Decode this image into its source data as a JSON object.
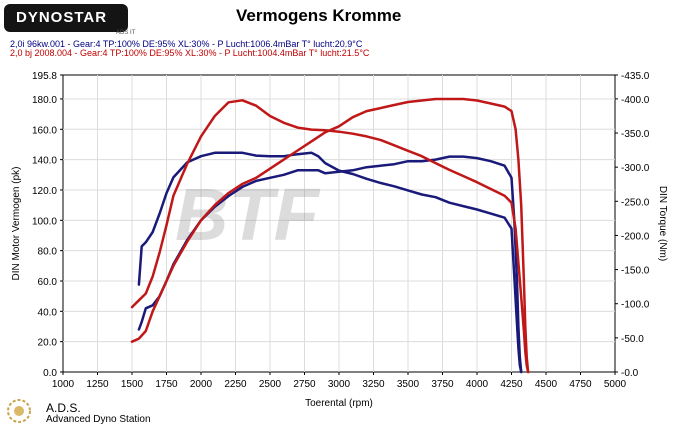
{
  "header": {
    "logo_text": "DYNOSTAR",
    "logo_subtext": "ADS IT",
    "title": "Vermogens Kromme",
    "run1_info": "2,0i 96kw.001 - Gear:4 TP:100% DE:95% XL:30%   - P Lucht:1006.4mBar T° lucht:20.9°C",
    "run2_info": "2,0 bj 2008.004 - Gear:4 TP:100% DE:95% XL:30%    - P Lucht:1004.4mBar T° lucht:21.5°C"
  },
  "footer": {
    "ads_name": "A.D.S.",
    "ads_full": "Advanced Dyno Station"
  },
  "watermark": "BTF",
  "colors": {
    "run1": "#1a1a7a",
    "run2": "#c01818",
    "header_run1": "#000080",
    "header_run2": "#c00000"
  },
  "chart_data": {
    "type": "line",
    "title": "Vermogens Kromme",
    "xlabel": "Toerental (rpm)",
    "ylabel_left": "DIN Motor Vermogen (pk)",
    "ylabel_right": "DIN Torque (Nm)",
    "xlim": [
      1000,
      5000
    ],
    "ylim_left": [
      0,
      195.8
    ],
    "ylim_right": [
      0,
      435
    ],
    "x_ticks": [
      "1000",
      "1250",
      "1500",
      "1750",
      "2000",
      "2250",
      "2500",
      "2750",
      "3000",
      "3250",
      "3500",
      "3750",
      "4000",
      "4250",
      "4500",
      "4750",
      "5000"
    ],
    "y_left_ticks": [
      "0.0",
      "20.0",
      "40.0",
      "60.0",
      "80.0",
      "100.0",
      "120.0",
      "140.0",
      "160.0",
      "180.0",
      "195.8"
    ],
    "y_right_ticks": [
      "-0.0",
      "-50.0",
      "-100.0",
      "-150.0",
      "-200.0",
      "-250.0",
      "-300.0",
      "-350.0",
      "-400.0",
      "-435.0"
    ],
    "grid": true,
    "series": [
      {
        "run": "run1",
        "quantity": "power",
        "axis": "left",
        "x": [
          1550,
          1570,
          1600,
          1650,
          1700,
          1750,
          1800,
          1900,
          2000,
          2100,
          2200,
          2300,
          2400,
          2500,
          2600,
          2700,
          2800,
          2850,
          2900,
          3000,
          3100,
          3200,
          3300,
          3400,
          3500,
          3600,
          3700,
          3750,
          3800,
          3900,
          4000,
          4100,
          4200,
          4250,
          4270,
          4290,
          4300,
          4310,
          4320
        ],
        "y": [
          28,
          33,
          42,
          44,
          50,
          60,
          71,
          87,
          100,
          109,
          116,
          122,
          126,
          128,
          130,
          133,
          133,
          133,
          131,
          132,
          133,
          135,
          136,
          137,
          139,
          139,
          140,
          141,
          142,
          142,
          141,
          139,
          136,
          128,
          100,
          60,
          30,
          10,
          0
        ]
      },
      {
        "run": "run1",
        "quantity": "torque",
        "axis": "right",
        "x": [
          1550,
          1570,
          1600,
          1650,
          1700,
          1750,
          1800,
          1900,
          2000,
          2100,
          2200,
          2300,
          2400,
          2500,
          2600,
          2700,
          2800,
          2850,
          2900,
          3000,
          3100,
          3200,
          3300,
          3400,
          3500,
          3600,
          3700,
          3750,
          3800,
          3900,
          4000,
          4100,
          4200,
          4250,
          4270,
          4290,
          4300,
          4310,
          4320
        ],
        "y": [
          128,
          184,
          190,
          205,
          232,
          262,
          285,
          307,
          316,
          321,
          321,
          321,
          317,
          316,
          316,
          319,
          321,
          316,
          306,
          295,
          290,
          283,
          277,
          272,
          266,
          260,
          256,
          252,
          248,
          243,
          238,
          232,
          226,
          210,
          140,
          70,
          35,
          10,
          0
        ]
      },
      {
        "run": "run2",
        "quantity": "power",
        "axis": "left",
        "x": [
          1500,
          1550,
          1600,
          1650,
          1700,
          1750,
          1800,
          1900,
          2000,
          2100,
          2200,
          2300,
          2400,
          2500,
          2600,
          2700,
          2800,
          2900,
          3000,
          3100,
          3200,
          3300,
          3400,
          3500,
          3600,
          3700,
          3800,
          3900,
          4000,
          4100,
          4200,
          4250,
          4280,
          4300,
          4320,
          4340,
          4350,
          4360,
          4370
        ],
        "y": [
          20,
          22,
          27,
          40,
          50,
          60,
          70,
          86,
          100,
          110,
          118,
          124,
          128,
          134,
          140,
          146,
          152,
          158,
          162,
          168,
          172,
          174,
          176,
          178,
          179,
          180,
          180,
          180,
          179,
          177,
          175,
          172,
          160,
          140,
          110,
          60,
          30,
          10,
          0
        ]
      },
      {
        "run": "run2",
        "quantity": "torque",
        "axis": "right",
        "x": [
          1500,
          1550,
          1600,
          1650,
          1700,
          1750,
          1800,
          1900,
          2000,
          2100,
          2200,
          2300,
          2400,
          2500,
          2600,
          2700,
          2800,
          2900,
          3000,
          3100,
          3200,
          3300,
          3400,
          3500,
          3600,
          3700,
          3800,
          3900,
          4000,
          4100,
          4200,
          4250,
          4280,
          4300,
          4320,
          4340,
          4350,
          4360,
          4370
        ],
        "y": [
          95,
          105,
          115,
          140,
          175,
          215,
          258,
          305,
          345,
          375,
          395,
          398,
          390,
          375,
          365,
          358,
          355,
          354,
          352,
          349,
          345,
          340,
          332,
          324,
          316,
          306,
          296,
          287,
          278,
          268,
          258,
          248,
          210,
          160,
          110,
          60,
          30,
          10,
          0
        ]
      }
    ]
  }
}
